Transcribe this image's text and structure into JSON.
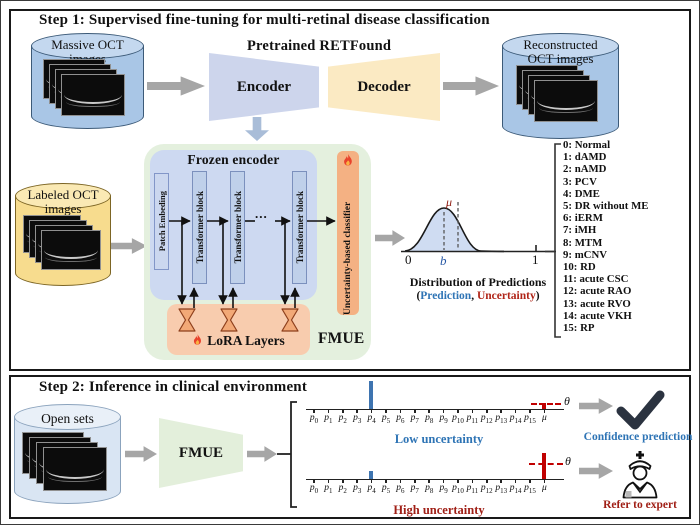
{
  "colors": {
    "panel_border": "#191919",
    "blue_cylinder": "#a9c6e6",
    "yellow_cylinder": "#f7dc8e",
    "open_cylinder": "#d9e5f3",
    "encoder": "#cdd5ec",
    "decoder": "#fbeac3",
    "frozen_bg": "#cdd9f1",
    "fmue_bg": "#e4f0de",
    "lora_bg": "#f8ccae",
    "classifier": "#f4b183",
    "arrow_gray": "#a6a6a6",
    "accent_blue": "#2e74b5",
    "accent_red": "#a01f16",
    "bar_blue": "#3e74b0",
    "bar_red": "#c00000"
  },
  "step1": {
    "title": "Step 1: Supervised fine-tuning for multi-retinal disease classification",
    "massive_cylinder": {
      "line1": "Massive OCT",
      "line2": "images"
    },
    "pretrained_label": "Pretrained RETFound",
    "encoder_label": "Encoder",
    "decoder_label": "Decoder",
    "reconstructed_cylinder": {
      "line1": "Reconstructed",
      "line2": "OCT images"
    },
    "labeled_cylinder": {
      "line1": "Labeled OCT",
      "line2": "images"
    },
    "fmue": {
      "frozen_title": "Frozen encoder",
      "patch_label": "Patch Embeding",
      "transformer_label": "Transformer block",
      "dots": "...",
      "classifier_label": "Uncertainty-based classifier",
      "lora_label": "LoRA Layers",
      "fmue_label": "FMUE"
    },
    "distribution": {
      "x_min": "0",
      "x_max": "1",
      "mu": "μ",
      "b": "b",
      "caption": "Distribution of Predictions",
      "legend_open": "(",
      "legend_prediction": "Prediction",
      "legend_sep": ", ",
      "legend_uncertainty": "Uncertainty",
      "legend_close": ")"
    },
    "classes": [
      "0: Normal",
      "1: dAMD",
      "2: nAMD",
      "3: PCV",
      "4: DME",
      "5: DR without ME",
      "6: iERM",
      "7: iMH",
      "8: MTM",
      "9: mCNV",
      "10: RD",
      "11: acute CSC",
      "12: acute RAO",
      "13: acute RVO",
      "14: acute VKH",
      "15: RP"
    ]
  },
  "step2": {
    "title": "Step 2: Inference in clinical environment",
    "open_sets_label": "Open sets",
    "fmue_label": "FMUE",
    "tick_labels": [
      "p0",
      "p1",
      "p2",
      "p3",
      "p4",
      "p5",
      "p6",
      "p7",
      "p8",
      "p9",
      "p10",
      "p11",
      "p12",
      "p13",
      "p14",
      "p15",
      "μ"
    ],
    "theta": "θ",
    "low_label": "Low uncertainty",
    "high_label": "High uncertainty",
    "confidence_label": "Confidence prediction",
    "refer_label": "Refer to expert"
  }
}
